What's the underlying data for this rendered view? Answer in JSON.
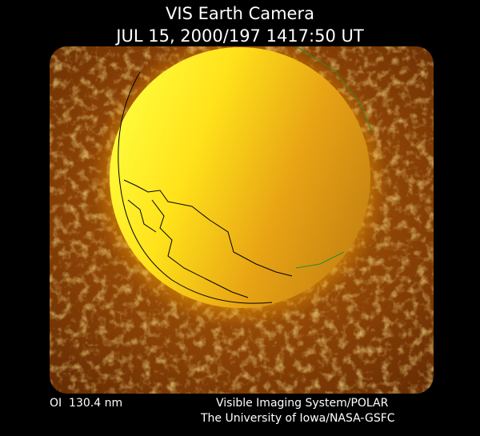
{
  "header": {
    "title": "VIS Earth Camera",
    "timestamp": "JUL 15, 2000/197 1417:50 UT"
  },
  "footer": {
    "wavelength": "OI  130.4 nm",
    "instrument": "Visible Imaging System/POLAR",
    "institution": "The University of Iowa/NASA-GSFC"
  }
}
